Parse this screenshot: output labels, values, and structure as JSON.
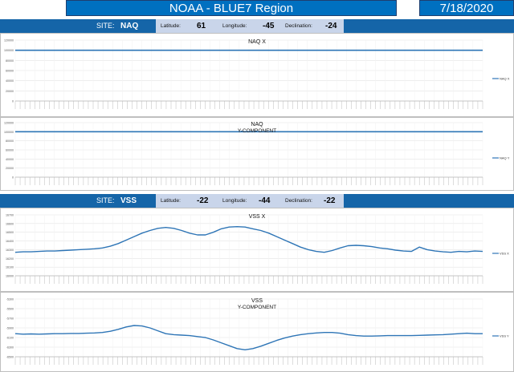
{
  "header": {
    "title": "NOAA - BLUE7 Region",
    "date": "7/18/2020"
  },
  "sites": [
    {
      "site_label": "SITE:",
      "code": "NAQ",
      "latitude_label": "Latitude:",
      "latitude": "61",
      "longitude_label": "Longitude:",
      "longitude": "-45",
      "declination_label": "Declination:",
      "declination": "-24"
    },
    {
      "site_label": "SITE:",
      "code": "VSS",
      "latitude_label": "Latitude:",
      "latitude": "-22",
      "longitude_label": "Longitude:",
      "longitude": "-44",
      "declination_label": "Declination:",
      "declination": "-22"
    }
  ],
  "colors": {
    "accent": "#0070c0",
    "line": "#2e75b6",
    "panel": "#c9d5ea"
  },
  "chart_data": [
    {
      "type": "line",
      "title": "NAQ X",
      "legend": "NAQ X",
      "legend_position": "right",
      "ylim": [
        0,
        120000
      ],
      "yticks": [
        "0",
        "20000",
        "40000",
        "60000",
        "80000",
        "100000",
        "120000"
      ],
      "series": [
        {
          "name": "NAQ X",
          "values": [
            100000,
            100000,
            100000,
            100000,
            100000,
            100000,
            100000,
            100000,
            100000,
            100000
          ]
        }
      ]
    },
    {
      "type": "line",
      "title": "NAQ",
      "subtitle": "Y-COMPONENT",
      "legend": "NAQ Y",
      "legend_position": "right",
      "ylim": [
        0,
        120000
      ],
      "yticks": [
        "0",
        "20000",
        "40000",
        "60000",
        "80000",
        "100000",
        "120000"
      ],
      "series": [
        {
          "name": "NAQ Y",
          "values": [
            100000,
            100000,
            100000,
            100000,
            100000,
            100000,
            100000,
            100000,
            100000,
            100000
          ]
        }
      ]
    },
    {
      "type": "line",
      "title": "VSS X",
      "legend": "VSS X",
      "legend_position": "right",
      "ylim": [
        16000,
        16700
      ],
      "yticks": [
        "16000",
        "16100",
        "16200",
        "16300",
        "16400",
        "16500",
        "16600",
        "16700"
      ],
      "series": [
        {
          "name": "VSS X",
          "values": [
            16270,
            16275,
            16275,
            16280,
            16285,
            16285,
            16290,
            16295,
            16300,
            16305,
            16310,
            16320,
            16340,
            16370,
            16410,
            16450,
            16490,
            16520,
            16545,
            16555,
            16545,
            16520,
            16490,
            16470,
            16470,
            16500,
            16540,
            16560,
            16565,
            16560,
            16540,
            16520,
            16490,
            16450,
            16410,
            16370,
            16330,
            16300,
            16280,
            16270,
            16290,
            16320,
            16345,
            16350,
            16345,
            16335,
            16320,
            16310,
            16295,
            16285,
            16280,
            16330,
            16300,
            16285,
            16275,
            16270,
            16280,
            16275,
            16285,
            16280
          ]
        }
      ]
    },
    {
      "type": "line",
      "title": "VSS",
      "subtitle": "Y-COMPONENT",
      "legend": "VSS Y",
      "legend_position": "right",
      "ylim": [
        -6500,
        -5300
      ],
      "yticks": [
        "-6500",
        "-6300",
        "-6100",
        "-5900",
        "-5700",
        "-5500",
        "-5300"
      ],
      "series": [
        {
          "name": "VSS Y",
          "values": [
            -6020,
            -6030,
            -6025,
            -6030,
            -6025,
            -6020,
            -6020,
            -6015,
            -6015,
            -6010,
            -6005,
            -5995,
            -5970,
            -5930,
            -5880,
            -5850,
            -5860,
            -5900,
            -5960,
            -6020,
            -6040,
            -6050,
            -6060,
            -6080,
            -6100,
            -6150,
            -6210,
            -6270,
            -6330,
            -6355,
            -6330,
            -6280,
            -6220,
            -6160,
            -6110,
            -6070,
            -6040,
            -6020,
            -6005,
            -5995,
            -5995,
            -6010,
            -6040,
            -6060,
            -6070,
            -6070,
            -6065,
            -6060,
            -6060,
            -6060,
            -6060,
            -6055,
            -6050,
            -6045,
            -6040,
            -6030,
            -6020,
            -6010,
            -6020,
            -6020
          ]
        }
      ]
    }
  ]
}
